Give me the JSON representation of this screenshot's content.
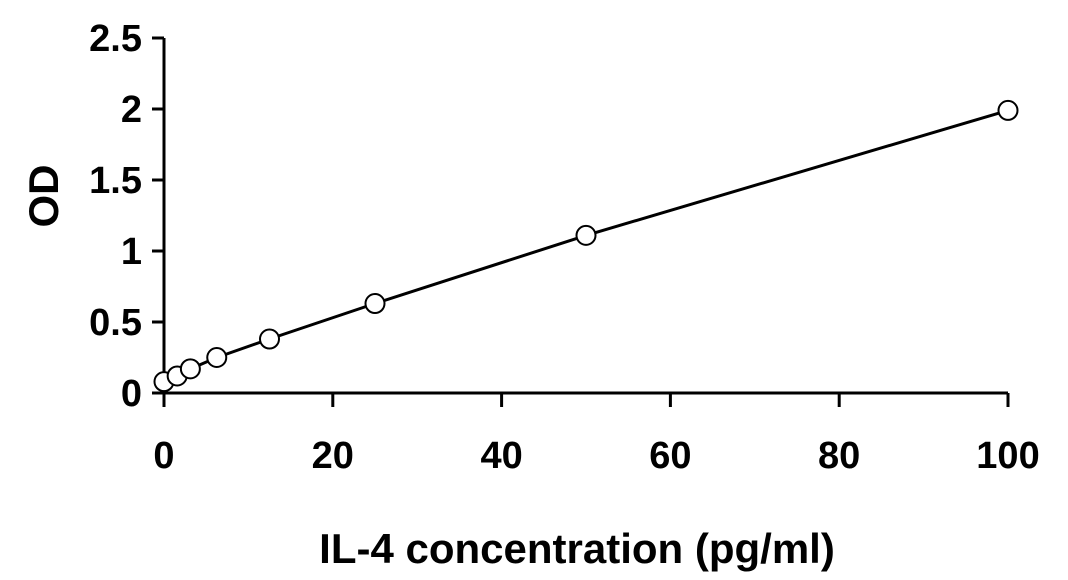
{
  "chart_data": {
    "type": "line",
    "title": "",
    "xlabel": "IL-4 concentration (pg/ml)",
    "ylabel": "OD",
    "xlim": [
      0,
      100
    ],
    "ylim": [
      0,
      2.5
    ],
    "xticks": [
      0,
      20,
      40,
      60,
      80,
      100
    ],
    "yticks": [
      0,
      0.5,
      1,
      1.5,
      2,
      2.5
    ],
    "xtick_labels": [
      "0",
      "20",
      "40",
      "60",
      "80",
      "100"
    ],
    "ytick_labels": [
      "0",
      "0.5",
      "1",
      "1.5",
      "2",
      "2.5"
    ],
    "grid": false,
    "legend": "none",
    "series": [
      {
        "x": [
          0,
          1.56,
          3.125,
          6.25,
          12.5,
          25,
          50,
          100
        ],
        "y": [
          0.08,
          0.12,
          0.17,
          0.25,
          0.38,
          0.63,
          1.11,
          1.99
        ],
        "marker": "open-circle",
        "line_color": "#000000",
        "marker_fill": "#ffffff"
      }
    ]
  }
}
